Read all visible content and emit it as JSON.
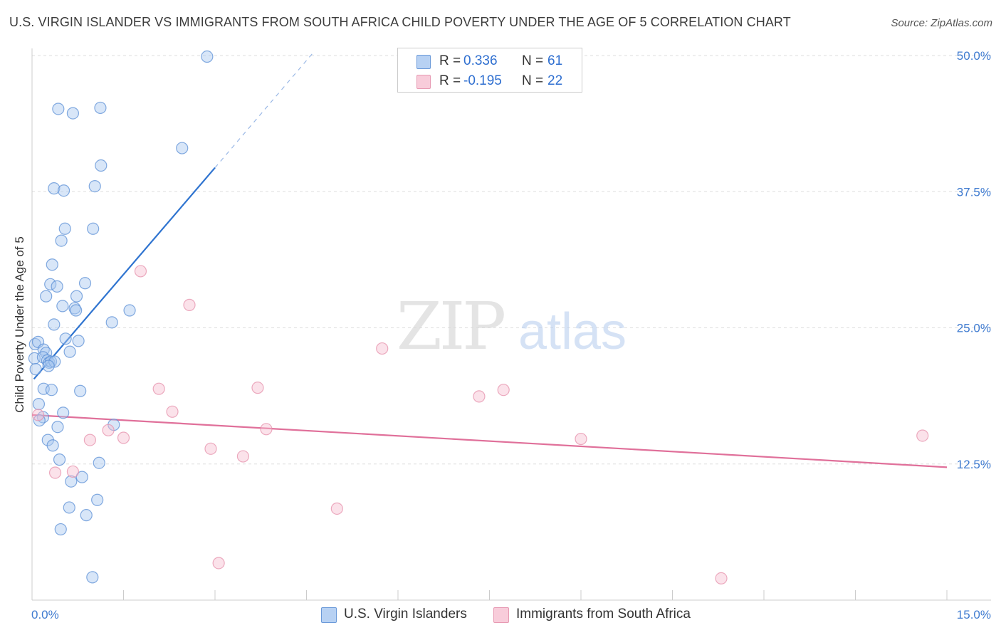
{
  "header": {
    "title": "U.S. VIRGIN ISLANDER VS IMMIGRANTS FROM SOUTH AFRICA CHILD POVERTY UNDER THE AGE OF 5 CORRELATION CHART",
    "source": "Source: ZipAtlas.com"
  },
  "watermark": {
    "zip": "ZIP",
    "atlas": "atlas"
  },
  "legend": {
    "rows": [
      {
        "r_label": "R =",
        "r_value": "0.336",
        "n_label": "N =",
        "n_value": "61"
      },
      {
        "r_label": "R =",
        "r_value": "-0.195",
        "n_label": "N =",
        "n_value": "22"
      }
    ]
  },
  "colors": {
    "blue_fill": "#a9c8f0",
    "blue_stroke": "#5b8fd6",
    "blue_line": "#2f74d0",
    "pink_fill": "#f6bfd0",
    "pink_stroke": "#e690ab",
    "pink_line": "#e0709a",
    "grid": "#dddddd",
    "tick_label": "#3f7bd0"
  },
  "chart_data": {
    "type": "scatter",
    "title": "U.S. VIRGIN ISLANDER VS IMMIGRANTS FROM SOUTH AFRICA CHILD POVERTY UNDER THE AGE OF 5 CORRELATION CHART",
    "xlabel": "",
    "ylabel": "Child Poverty Under the Age of 5",
    "xlim": [
      0,
      15
    ],
    "ylim": [
      0,
      50
    ],
    "x_tick_labels": {
      "min": "0.0%",
      "max": "15.0%"
    },
    "y_ticks": [
      {
        "value": 12.5,
        "label": "12.5%"
      },
      {
        "value": 25.0,
        "label": "25.0%"
      },
      {
        "value": 37.5,
        "label": "37.5%"
      },
      {
        "value": 50.0,
        "label": "50.0%"
      }
    ],
    "series": [
      {
        "name": "U.S. Virgin Islanders",
        "color": "blue",
        "r": 0.336,
        "n": 61,
        "trend": {
          "x0": 0.03,
          "y0": 20.3,
          "x1": 3.0,
          "y1": 39.7,
          "dash_x1": 4.6,
          "dash_y1": 50.2
        },
        "points": [
          [
            2.87,
            49.9
          ],
          [
            0.43,
            45.1
          ],
          [
            0.67,
            44.7
          ],
          [
            1.12,
            45.2
          ],
          [
            2.46,
            41.5
          ],
          [
            1.13,
            39.9
          ],
          [
            0.36,
            37.8
          ],
          [
            0.52,
            37.6
          ],
          [
            1.03,
            38.0
          ],
          [
            0.54,
            34.1
          ],
          [
            1.0,
            34.1
          ],
          [
            0.48,
            33.0
          ],
          [
            0.33,
            30.8
          ],
          [
            0.3,
            29.0
          ],
          [
            0.41,
            28.8
          ],
          [
            0.87,
            29.1
          ],
          [
            0.23,
            27.9
          ],
          [
            0.73,
            27.9
          ],
          [
            0.5,
            27.0
          ],
          [
            0.7,
            26.8
          ],
          [
            0.72,
            26.6
          ],
          [
            1.6,
            26.6
          ],
          [
            1.31,
            25.5
          ],
          [
            0.36,
            25.3
          ],
          [
            0.55,
            24.0
          ],
          [
            0.76,
            23.8
          ],
          [
            0.05,
            23.5
          ],
          [
            0.1,
            23.7
          ],
          [
            0.19,
            23.0
          ],
          [
            0.23,
            22.7
          ],
          [
            0.62,
            22.8
          ],
          [
            0.04,
            22.2
          ],
          [
            0.18,
            22.3
          ],
          [
            0.25,
            22.0
          ],
          [
            0.28,
            21.8
          ],
          [
            0.31,
            21.9
          ],
          [
            0.37,
            21.9
          ],
          [
            0.27,
            21.5
          ],
          [
            0.06,
            21.2
          ],
          [
            0.19,
            19.4
          ],
          [
            0.32,
            19.3
          ],
          [
            0.79,
            19.2
          ],
          [
            0.11,
            18.0
          ],
          [
            0.51,
            17.2
          ],
          [
            0.18,
            16.8
          ],
          [
            0.12,
            16.5
          ],
          [
            0.42,
            15.9
          ],
          [
            1.34,
            16.1
          ],
          [
            0.26,
            14.7
          ],
          [
            0.34,
            14.2
          ],
          [
            0.45,
            12.9
          ],
          [
            1.1,
            12.6
          ],
          [
            0.82,
            11.3
          ],
          [
            0.64,
            10.9
          ],
          [
            1.07,
            9.2
          ],
          [
            0.61,
            8.5
          ],
          [
            0.89,
            7.8
          ],
          [
            0.47,
            6.5
          ],
          [
            0.99,
            2.1
          ]
        ]
      },
      {
        "name": "Immigrants from South Africa",
        "color": "pink",
        "r": -0.195,
        "n": 22,
        "trend": {
          "x0": 0.0,
          "y0": 17.0,
          "x1": 15.0,
          "y1": 12.2
        },
        "points": [
          [
            0.1,
            17.0
          ],
          [
            1.78,
            30.2
          ],
          [
            2.58,
            27.1
          ],
          [
            5.74,
            23.1
          ],
          [
            2.08,
            19.4
          ],
          [
            3.7,
            19.5
          ],
          [
            7.33,
            18.7
          ],
          [
            7.73,
            19.3
          ],
          [
            2.3,
            17.3
          ],
          [
            1.25,
            15.6
          ],
          [
            1.5,
            14.9
          ],
          [
            3.84,
            15.7
          ],
          [
            0.95,
            14.7
          ],
          [
            2.93,
            13.9
          ],
          [
            3.46,
            13.2
          ],
          [
            9.0,
            14.8
          ],
          [
            14.6,
            15.1
          ],
          [
            0.38,
            11.7
          ],
          [
            0.67,
            11.8
          ],
          [
            5.0,
            8.4
          ],
          [
            3.06,
            3.4
          ],
          [
            11.3,
            2.0
          ]
        ]
      }
    ]
  }
}
